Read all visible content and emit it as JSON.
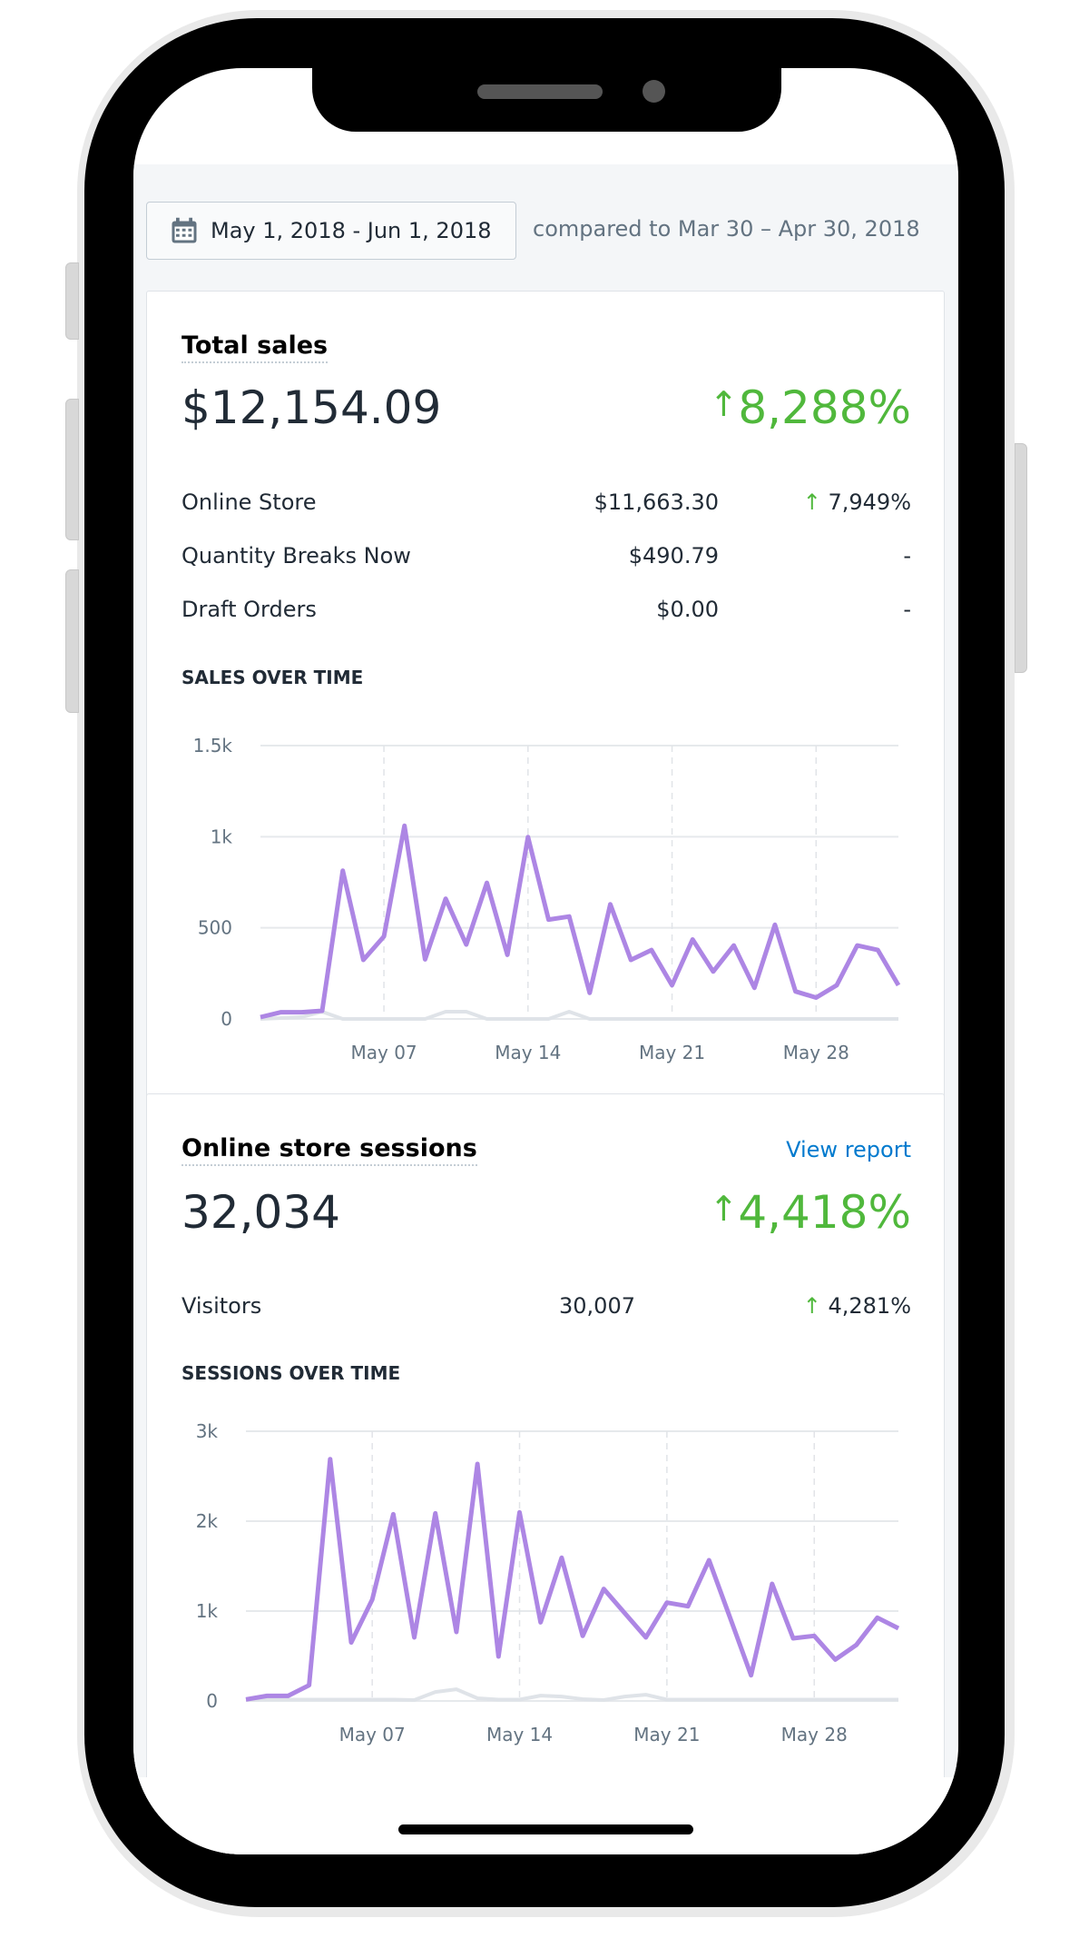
{
  "date_range": {
    "label": "May 1, 2018 - Jun 1, 2018",
    "icon": "calendar-icon",
    "comparison": "compared to Mar 30 – Apr 30, 2018"
  },
  "colors": {
    "primary_series": "#ad86e4",
    "comparison_series": "#dfe3e8",
    "positive": "#50b83c",
    "link": "#007ace"
  },
  "total_sales": {
    "title": "Total sales",
    "value": "$12,154.09",
    "change": "8,288%",
    "change_icon": "arrow-up-icon",
    "rows": [
      {
        "label": "Online Store",
        "value": "$11,663.30",
        "change": "7,949%",
        "change_icon": "arrow-up-icon"
      },
      {
        "label": "Quantity Breaks Now",
        "value": "$490.79",
        "change": "-"
      },
      {
        "label": "Draft Orders",
        "value": "$0.00",
        "change": "-"
      }
    ],
    "chart_title": "SALES OVER TIME"
  },
  "sessions": {
    "title": "Online store sessions",
    "view_report": "View report",
    "value": "32,034",
    "change": "4,418%",
    "change_icon": "arrow-up-icon",
    "rows": [
      {
        "label": "Visitors",
        "value": "30,007",
        "change": "4,281%",
        "change_icon": "arrow-up-icon"
      }
    ],
    "chart_title": "SESSIONS OVER TIME"
  },
  "chart_data": [
    {
      "type": "line",
      "title": "SALES OVER TIME",
      "x": "May 1 – Jun 1, 2018 (daily)",
      "xticks": [
        "May 07",
        "May 14",
        "May 21",
        "May 28"
      ],
      "xtick_days": [
        6,
        13,
        20,
        27
      ],
      "yticks": [
        "0",
        "500",
        "1k",
        "1.5k"
      ],
      "ytick_values": [
        0,
        500,
        1000,
        1500
      ],
      "ylim": [
        0,
        1500
      ],
      "grid": true,
      "series": [
        {
          "values": [
            10,
            37,
            37,
            45,
            814,
            324,
            453,
            1060,
            327,
            660,
            408,
            747,
            352,
            998,
            545,
            562,
            143,
            629,
            324,
            378,
            185,
            436,
            260,
            403,
            171,
            517,
            151,
            117,
            185,
            403,
            378,
            185
          ]
        },
        {
          "values": [
            0,
            5,
            10,
            40,
            0,
            0,
            0,
            0,
            0,
            40,
            40,
            0,
            0,
            0,
            0,
            40,
            0,
            0,
            0,
            0,
            0,
            0,
            0,
            0,
            0,
            0,
            0,
            0,
            0,
            0,
            0,
            0
          ]
        }
      ]
    },
    {
      "type": "line",
      "title": "SESSIONS OVER TIME",
      "x": "May 1 – Jun 1, 2018 (daily)",
      "xticks": [
        "May 07",
        "May 14",
        "May 21",
        "May 28"
      ],
      "xtick_days": [
        6,
        13,
        20,
        27
      ],
      "yticks": [
        "0",
        "1k",
        "2k",
        "3k"
      ],
      "ytick_values": [
        0,
        1000,
        2000,
        3000
      ],
      "ylim": [
        0,
        3000
      ],
      "grid": true,
      "series": [
        {
          "values": [
            17,
            57,
            57,
            175,
            2690,
            650,
            1128,
            2077,
            707,
            2087,
            768,
            2636,
            495,
            2098,
            875,
            1593,
            724,
            1246,
            976,
            707,
            1094,
            1054,
            1566,
            926,
            286,
            1303,
            697,
            724,
            461,
            623,
            926,
            808
          ]
        },
        {
          "values": [
            10,
            15,
            15,
            15,
            15,
            15,
            15,
            15,
            10,
            100,
            130,
            30,
            15,
            15,
            60,
            50,
            20,
            10,
            50,
            70,
            15,
            15,
            15,
            15,
            15,
            15,
            15,
            15,
            15,
            15,
            15,
            15
          ]
        }
      ]
    }
  ]
}
